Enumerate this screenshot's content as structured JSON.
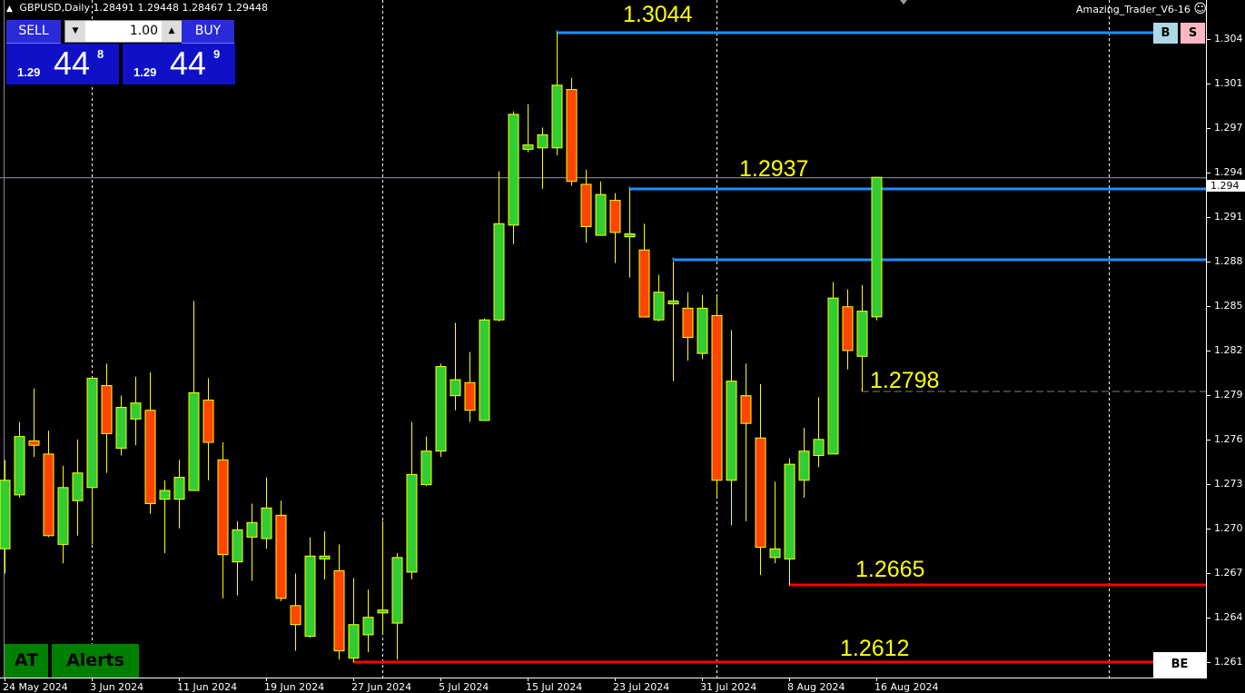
{
  "header": {
    "symbol_timeframe": "GBPUSD,Daily",
    "open": "1.28491",
    "high": "1.29448",
    "low": "1.28467",
    "close": "1.29448"
  },
  "expert": {
    "name": "Amazing_Trader_V6-16",
    "icon": "smiley-icon"
  },
  "trade_panel": {
    "sell_label": "SELL",
    "buy_label": "BUY",
    "lot": "1.00",
    "sell_price": {
      "prefix": "1.29",
      "big": "44",
      "sup": "8"
    },
    "buy_price": {
      "prefix": "1.29",
      "big": "44",
      "sup": "9"
    }
  },
  "buttons": {
    "b": "B",
    "s": "S",
    "be": "BE",
    "at": "AT",
    "alerts": "Alerts"
  },
  "current_price_label": "1.294",
  "colors": {
    "bull": "#32cd32",
    "bear": "#ff4500",
    "outline": "#ffff00",
    "blue_level": "#1e90ff",
    "red_level": "#ff0000",
    "level_text": "#ffff00",
    "background": "#000000"
  },
  "chart_data": {
    "type": "candlestick",
    "symbol": "GBPUSD",
    "timeframe": "Daily",
    "ylim": [
      1.26,
      1.3058
    ],
    "grid": false,
    "y_ticks": [
      "1.304",
      "1.301",
      "1.297",
      "1.294",
      "1.291",
      "1.288",
      "1.285",
      "1.282",
      "1.279",
      "1.276",
      "1.273",
      "1.270",
      "1.267",
      "1.264",
      "1.261"
    ],
    "x_ticks": [
      {
        "candle": 0,
        "label": "24 May 2024"
      },
      {
        "candle": 6,
        "label": "3 Jun 2024"
      },
      {
        "candle": 12,
        "label": "11 Jun 2024"
      },
      {
        "candle": 18,
        "label": "19 Jun 2024"
      },
      {
        "candle": 24,
        "label": "27 Jun 2024"
      },
      {
        "candle": 30,
        "label": "5 Jul 2024"
      },
      {
        "candle": 36,
        "label": "15 Jul 2024"
      },
      {
        "candle": 42,
        "label": "23 Jul 2024"
      },
      {
        "candle": 48,
        "label": "31 Jul 2024"
      },
      {
        "candle": 54,
        "label": "8 Aug 2024"
      },
      {
        "candle": 60,
        "label": "16 Aug 2024"
      }
    ],
    "ohlc": [
      [
        1.269,
        1.2751,
        1.2673,
        1.2737
      ],
      [
        1.2727,
        1.2777,
        1.2725,
        1.2767
      ],
      [
        1.2764,
        1.28,
        1.2753,
        1.2761
      ],
      [
        1.2755,
        1.2771,
        1.2698,
        1.2699
      ],
      [
        1.2693,
        1.2747,
        1.268,
        1.2732
      ],
      [
        1.2723,
        1.2765,
        1.2699,
        1.2742
      ],
      [
        1.2732,
        1.2807,
        1.2693,
        1.2807
      ],
      [
        1.2802,
        1.2817,
        1.2742,
        1.2769
      ],
      [
        1.2759,
        1.2795,
        1.2754,
        1.2787
      ],
      [
        1.2779,
        1.2808,
        1.2761,
        1.279
      ],
      [
        1.2785,
        1.2811,
        1.2714,
        1.2721
      ],
      [
        1.2724,
        1.2737,
        1.2687,
        1.273
      ],
      [
        1.2724,
        1.2751,
        1.2704,
        1.2739
      ],
      [
        1.273,
        1.286,
        1.273,
        1.2797
      ],
      [
        1.2792,
        1.2807,
        1.2737,
        1.2763
      ],
      [
        1.2751,
        1.2763,
        1.2656,
        1.2686
      ],
      [
        1.2681,
        1.2709,
        1.2658,
        1.2703
      ],
      [
        1.2698,
        1.2721,
        1.2668,
        1.2708
      ],
      [
        1.2697,
        1.2739,
        1.269,
        1.2718
      ],
      [
        1.2713,
        1.2723,
        1.2654,
        1.2656
      ],
      [
        1.2651,
        1.2673,
        1.262,
        1.2638
      ],
      [
        1.263,
        1.2698,
        1.2629,
        1.2685
      ],
      [
        1.2683,
        1.2702,
        1.2669,
        1.2685
      ],
      [
        1.2675,
        1.2693,
        1.2614,
        1.262
      ],
      [
        1.2615,
        1.267,
        1.2612,
        1.2638
      ],
      [
        1.2631,
        1.2662,
        1.2619,
        1.2643
      ],
      [
        1.2646,
        1.2709,
        1.2632,
        1.2648
      ],
      [
        1.2639,
        1.2687,
        1.2614,
        1.2684
      ],
      [
        1.2674,
        1.2777,
        1.2669,
        1.2741
      ],
      [
        1.2734,
        1.2767,
        1.2733,
        1.2757
      ],
      [
        1.2757,
        1.2817,
        1.2753,
        1.2815
      ],
      [
        1.2795,
        1.2845,
        1.2785,
        1.2806
      ],
      [
        1.2804,
        1.2825,
        1.2777,
        1.2785
      ],
      [
        1.2778,
        1.2848,
        1.2778,
        1.2847
      ],
      [
        1.2847,
        1.2949,
        1.2846,
        1.2913
      ],
      [
        1.2912,
        1.299,
        1.2899,
        1.2988
      ],
      [
        1.2964,
        1.2995,
        1.2962,
        1.2967
      ],
      [
        1.2965,
        1.2979,
        1.2937,
        1.2974
      ],
      [
        1.2965,
        1.3044,
        1.296,
        1.3008
      ],
      [
        1.3005,
        1.3013,
        1.2939,
        1.2942
      ],
      [
        1.294,
        1.295,
        1.29,
        1.2911
      ],
      [
        1.2905,
        1.2942,
        1.2905,
        1.2933
      ],
      [
        1.2929,
        1.2934,
        1.2886,
        1.2907
      ],
      [
        1.2904,
        1.2937,
        1.2876,
        1.2906
      ],
      [
        1.2895,
        1.2913,
        1.2849,
        1.2849
      ],
      [
        1.2847,
        1.2878,
        1.2846,
        1.2866
      ],
      [
        1.2858,
        1.2887,
        1.2805,
        1.286
      ],
      [
        1.2855,
        1.2866,
        1.2819,
        1.2835
      ],
      [
        1.2824,
        1.2864,
        1.282,
        1.2855
      ],
      [
        1.285,
        1.2863,
        1.2726,
        1.2737
      ],
      [
        1.2737,
        1.284,
        1.2706,
        1.2805
      ],
      [
        1.2795,
        1.2817,
        1.2709,
        1.2776
      ],
      [
        1.2766,
        1.2803,
        1.2672,
        1.2691
      ],
      [
        1.2684,
        1.2736,
        1.268,
        1.269
      ],
      [
        1.2683,
        1.2752,
        1.2665,
        1.2748
      ],
      [
        1.2737,
        1.2773,
        1.2725,
        1.2757
      ],
      [
        1.2754,
        1.2794,
        1.2746,
        1.2765
      ],
      [
        1.2755,
        1.2873,
        1.2755,
        1.2862
      ],
      [
        1.2856,
        1.2868,
        1.2813,
        1.2826
      ],
      [
        1.2822,
        1.2871,
        1.2798,
        1.2853
      ],
      [
        1.28491,
        1.29448,
        1.28467,
        1.29448
      ]
    ],
    "current_price": 1.29448,
    "levels": [
      {
        "price": 1.3044,
        "from_candle": 38,
        "color": "#1e90ff",
        "style": "solid",
        "label": "1.3044"
      },
      {
        "price": 1.2937,
        "from_candle": 43,
        "color": "#1e90ff",
        "style": "solid",
        "label": "1.2937"
      },
      {
        "price": 1.2888,
        "from_candle": 46,
        "color": "#1e90ff",
        "style": "solid",
        "label": ""
      },
      {
        "price": 1.2798,
        "from_candle": 59,
        "color": "#808080",
        "style": "dashed",
        "label": "1.2798"
      },
      {
        "price": 1.2665,
        "from_candle": 54,
        "color": "#ff0000",
        "style": "solid",
        "label": "1.2665"
      },
      {
        "price": 1.2612,
        "from_candle": 24,
        "color": "#ff0000",
        "style": "solid",
        "label": "1.2612"
      }
    ]
  }
}
